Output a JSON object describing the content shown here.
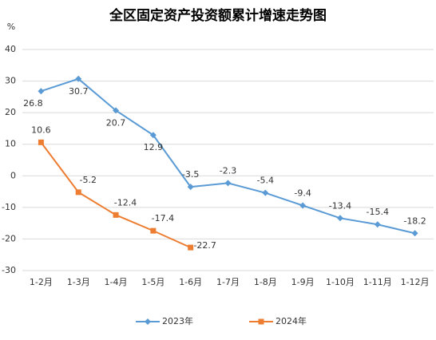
{
  "chart_data": {
    "type": "line",
    "title": "全区固定资产投资额累计增速走势图",
    "y_label": "%",
    "categories": [
      "1-2月",
      "1-3月",
      "1-4月",
      "1-5月",
      "1-6月",
      "1-7月",
      "1-8月",
      "1-9月",
      "1-10月",
      "1-11月",
      "1-12月"
    ],
    "series": [
      {
        "name": "2023年",
        "color": "#5b9bd5",
        "marker": "diamond",
        "values": [
          26.8,
          30.7,
          20.7,
          12.9,
          -3.5,
          -2.3,
          -5.4,
          -9.4,
          -13.4,
          -15.4,
          -18.2
        ]
      },
      {
        "name": "2024年",
        "color": "#ed7d31",
        "marker": "square",
        "values": [
          10.6,
          -5.2,
          -12.4,
          -17.4,
          -22.7,
          null,
          null,
          null,
          null,
          null,
          null
        ]
      }
    ],
    "ylim": [
      -30,
      40
    ],
    "yticks": [
      -30,
      -20,
      -10,
      0,
      10,
      20,
      30,
      40
    ],
    "grid": true,
    "legend": "bottom"
  }
}
